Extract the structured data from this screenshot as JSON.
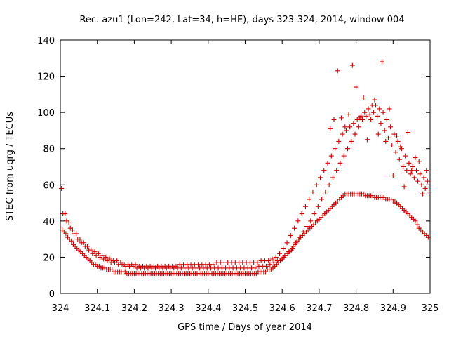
{
  "chart_data": {
    "type": "scatter",
    "title": "Rec. azu1 (Lon=242, Lat=34, h=HE), days 323-324, 2014, window 004",
    "xlabel": "GPS time / Days of year 2014",
    "ylabel": "STEC from uqrg / TECUs",
    "xlim": [
      324,
      325
    ],
    "ylim": [
      0,
      140
    ],
    "xticks": [
      "324",
      "324.1",
      "324.2",
      "324.3",
      "324.4",
      "324.5",
      "324.6",
      "324.7",
      "324.8",
      "324.9",
      "325"
    ],
    "yticks": [
      "0",
      "20",
      "40",
      "60",
      "80",
      "100",
      "120",
      "140"
    ],
    "grid": false,
    "marker": "+",
    "marker_color": "#cc0000",
    "series": [
      {
        "x": [
          324.005,
          324.01,
          324.015,
          324.02,
          324.025,
          324.03,
          324.035,
          324.04,
          324.045,
          324.05,
          324.055,
          324.06,
          324.065,
          324.07,
          324.075,
          324.08,
          324.085,
          324.09,
          324.095,
          324.1,
          324.105,
          324.11,
          324.115,
          324.12,
          324.125,
          324.13,
          324.135,
          324.14,
          324.145,
          324.15,
          324.155,
          324.16,
          324.165,
          324.17,
          324.175,
          324.18,
          324.185,
          324.19,
          324.195,
          324.2,
          324.205,
          324.21,
          324.215,
          324.22,
          324.225,
          324.23,
          324.235,
          324.24,
          324.245,
          324.25,
          324.255,
          324.26,
          324.265,
          324.27,
          324.275,
          324.28,
          324.285,
          324.29,
          324.295,
          324.3,
          324.305,
          324.31,
          324.315,
          324.32,
          324.325,
          324.33,
          324.335,
          324.34,
          324.345,
          324.35,
          324.355,
          324.36,
          324.365,
          324.37,
          324.375,
          324.38,
          324.385,
          324.39,
          324.395,
          324.4,
          324.405,
          324.41,
          324.415,
          324.42,
          324.425,
          324.43,
          324.435,
          324.44,
          324.445,
          324.45,
          324.455,
          324.46,
          324.465,
          324.47,
          324.475,
          324.48,
          324.485,
          324.49,
          324.495,
          324.5,
          324.505,
          324.51,
          324.515,
          324.52,
          324.525,
          324.53,
          324.535,
          324.54,
          324.545,
          324.55,
          324.555,
          324.56,
          324.565,
          324.57,
          324.575,
          324.58,
          324.585,
          324.59,
          324.595,
          324.6,
          324.605,
          324.61,
          324.615,
          324.62,
          324.625,
          324.63,
          324.635,
          324.64,
          324.645,
          324.65,
          324.655,
          324.66,
          324.665,
          324.67,
          324.675,
          324.68,
          324.685,
          324.69,
          324.695,
          324.7,
          324.705,
          324.71,
          324.715,
          324.72,
          324.725,
          324.73,
          324.735,
          324.74,
          324.745,
          324.75,
          324.755,
          324.76,
          324.765,
          324.77,
          324.775,
          324.78,
          324.785,
          324.79,
          324.795,
          324.8,
          324.805,
          324.81,
          324.815,
          324.82,
          324.825,
          324.83,
          324.835,
          324.84,
          324.845,
          324.85,
          324.855,
          324.86,
          324.865,
          324.87,
          324.875,
          324.88,
          324.885,
          324.89,
          324.895,
          324.9,
          324.905,
          324.91,
          324.915,
          324.92,
          324.925,
          324.93,
          324.935,
          324.94,
          324.945,
          324.95,
          324.955,
          324.96,
          324.965,
          324.97,
          324.975,
          324.98,
          324.985,
          324.99,
          324.995
        ],
        "y": [
          35,
          34,
          33,
          31,
          30,
          29,
          27,
          26,
          25,
          24,
          23,
          22,
          21,
          20,
          19,
          18,
          17,
          16,
          16,
          15,
          15,
          14,
          14,
          14,
          13,
          13,
          13,
          13,
          12,
          12,
          12,
          12,
          12,
          12,
          12,
          11,
          11,
          11,
          11,
          11,
          11,
          11,
          11,
          11,
          11,
          11,
          11,
          11,
          11,
          11,
          11,
          11,
          11,
          11,
          11,
          11,
          11,
          11,
          11,
          11,
          11,
          11,
          11,
          11,
          11,
          11,
          11,
          11,
          11,
          11,
          11,
          11,
          11,
          11,
          11,
          11,
          11,
          11,
          11,
          11,
          11,
          11,
          11,
          11,
          11,
          11,
          11,
          11,
          11,
          11,
          11,
          11,
          11,
          11,
          11,
          11,
          11,
          11,
          11,
          11,
          11,
          11,
          11,
          11,
          11,
          11,
          12,
          12,
          12,
          12,
          12,
          13,
          13,
          13,
          14,
          15,
          16,
          17,
          18,
          19,
          20,
          21,
          22,
          23,
          24,
          26,
          27,
          29,
          30,
          31,
          32,
          33,
          34,
          35,
          36,
          37,
          38,
          39,
          40,
          41,
          42,
          43,
          44,
          45,
          46,
          47,
          48,
          49,
          50,
          51,
          52,
          53,
          54,
          55,
          55,
          55,
          55,
          55,
          55,
          55,
          55,
          55,
          55,
          55,
          54,
          54,
          54,
          54,
          54,
          53,
          53,
          53,
          53,
          53,
          53,
          52,
          52,
          52,
          52,
          51,
          51,
          50,
          49,
          48,
          47,
          46,
          45,
          44,
          43,
          42,
          41,
          40,
          38,
          36,
          35,
          34,
          33,
          32,
          31
        ]
      },
      {
        "x": [
          324.003,
          324.013,
          324.023,
          324.033,
          324.043,
          324.053,
          324.063,
          324.073,
          324.083,
          324.093,
          324.103,
          324.113,
          324.123,
          324.133,
          324.143,
          324.153,
          324.163,
          324.173,
          324.183,
          324.193,
          324.203,
          324.213,
          324.223,
          324.233,
          324.243,
          324.253,
          324.263,
          324.273,
          324.283,
          324.293,
          324.303,
          324.313,
          324.323,
          324.333,
          324.343,
          324.353,
          324.363,
          324.373,
          324.383,
          324.393,
          324.403,
          324.413,
          324.423,
          324.433,
          324.443,
          324.453,
          324.463,
          324.473,
          324.483,
          324.493,
          324.503,
          324.513,
          324.523,
          324.533,
          324.543,
          324.553,
          324.563,
          324.573,
          324.583,
          324.593,
          324.603,
          324.613,
          324.623,
          324.633,
          324.643,
          324.653,
          324.663,
          324.673,
          324.683,
          324.693,
          324.703,
          324.713,
          324.723,
          324.733,
          324.743,
          324.753,
          324.763,
          324.773,
          324.783,
          324.793,
          324.803,
          324.813,
          324.823,
          324.833,
          324.843,
          324.853,
          324.863,
          324.873,
          324.883,
          324.893,
          324.903,
          324.913,
          324.923,
          324.933,
          324.943,
          324.953,
          324.963,
          324.973,
          324.983,
          324.993
        ],
        "y": [
          58,
          44,
          39,
          35,
          33,
          30,
          28,
          26,
          24,
          23,
          22,
          21,
          20,
          19,
          18,
          18,
          17,
          16,
          16,
          16,
          16,
          15,
          15,
          15,
          15,
          15,
          15,
          15,
          15,
          15,
          15,
          15,
          16,
          16,
          16,
          16,
          16,
          16,
          16,
          16,
          16,
          16,
          17,
          17,
          17,
          17,
          17,
          17,
          17,
          17,
          17,
          17,
          17,
          17,
          18,
          18,
          18,
          19,
          20,
          22,
          25,
          28,
          32,
          36,
          40,
          44,
          48,
          52,
          56,
          60,
          64,
          68,
          72,
          76,
          80,
          84,
          88,
          90,
          92,
          94,
          96,
          98,
          100,
          102,
          104,
          104,
          102,
          100,
          96,
          92,
          88,
          84,
          80,
          76,
          72,
          70,
          68,
          66,
          64,
          62
        ]
      },
      {
        "x": [
          324.007,
          324.017,
          324.027,
          324.037,
          324.047,
          324.057,
          324.067,
          324.077,
          324.087,
          324.097,
          324.107,
          324.117,
          324.127,
          324.137,
          324.147,
          324.157,
          324.167,
          324.177,
          324.187,
          324.197,
          324.207,
          324.217,
          324.227,
          324.237,
          324.247,
          324.257,
          324.267,
          324.277,
          324.287,
          324.297,
          324.307,
          324.317,
          324.327,
          324.337,
          324.347,
          324.357,
          324.367,
          324.377,
          324.387,
          324.397,
          324.407,
          324.417,
          324.427,
          324.437,
          324.447,
          324.457,
          324.467,
          324.477,
          324.487,
          324.497,
          324.507,
          324.517,
          324.527,
          324.537,
          324.547,
          324.557,
          324.567,
          324.577,
          324.587,
          324.597,
          324.607,
          324.617,
          324.627,
          324.637,
          324.647,
          324.657,
          324.667,
          324.677,
          324.687,
          324.697,
          324.707,
          324.717,
          324.727,
          324.737,
          324.747,
          324.757,
          324.767,
          324.777,
          324.787,
          324.797,
          324.807,
          324.817,
          324.827,
          324.837,
          324.847,
          324.857,
          324.867,
          324.877,
          324.887,
          324.897,
          324.907,
          324.917,
          324.927,
          324.937,
          324.947,
          324.957,
          324.967,
          324.977,
          324.987,
          324.997
        ],
        "y": [
          44,
          40,
          36,
          33,
          30,
          28,
          26,
          24,
          22,
          21,
          20,
          19,
          18,
          17,
          17,
          16,
          16,
          15,
          15,
          15,
          14,
          14,
          14,
          14,
          14,
          14,
          14,
          14,
          14,
          14,
          14,
          14,
          14,
          14,
          14,
          14,
          14,
          14,
          14,
          14,
          14,
          14,
          14,
          14,
          14,
          14,
          14,
          14,
          14,
          14,
          14,
          14,
          14,
          15,
          15,
          15,
          16,
          17,
          18,
          19,
          21,
          23,
          25,
          28,
          31,
          34,
          37,
          40,
          44,
          48,
          52,
          56,
          60,
          64,
          68,
          72,
          76,
          80,
          84,
          88,
          92,
          96,
          98,
          99,
          100,
          98,
          94,
          90,
          86,
          82,
          78,
          74,
          70,
          68,
          66,
          64,
          62,
          60,
          58,
          56
        ]
      },
      {
        "x": [
          324.73,
          324.74,
          324.75,
          324.76,
          324.77,
          324.78,
          324.79,
          324.8,
          324.81,
          324.82,
          324.83,
          324.84,
          324.85,
          324.86,
          324.87,
          324.88,
          324.89,
          324.9,
          324.91,
          324.92,
          324.93,
          324.94,
          324.95,
          324.96,
          324.97,
          324.98,
          324.99
        ],
        "y": [
          91,
          96,
          123,
          97,
          92,
          99,
          126,
          114,
          97,
          108,
          85,
          96,
          107,
          88,
          128,
          84,
          102,
          65,
          87,
          81,
          59,
          89,
          68,
          75,
          73,
          55,
          68
        ]
      }
    ]
  }
}
